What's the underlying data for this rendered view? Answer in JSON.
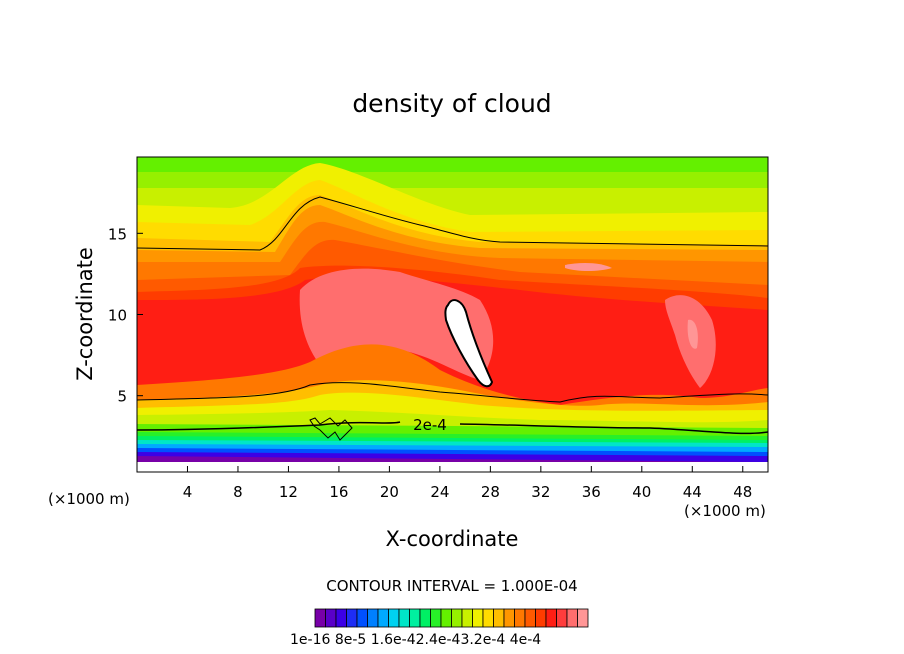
{
  "chart_data": {
    "type": "heatmap",
    "title": "density of cloud",
    "xlabel": "X-coordinate",
    "ylabel": "Z-coordinate",
    "x_unit_left": "(×1000 m)",
    "x_unit_right": "(×1000 m)",
    "xlim": [
      0,
      50
    ],
    "ylim": [
      0.3,
      19.7
    ],
    "x_ticks": [
      4,
      8,
      12,
      16,
      20,
      24,
      28,
      32,
      36,
      40,
      44,
      48
    ],
    "y_ticks": [
      5,
      10,
      15
    ],
    "contour_interval_text": "CONTOUR INTERVAL = 1.000E-04",
    "contour_label": "2e-4",
    "colorbar_tick_labels": [
      "1e-16",
      "8e-5",
      "1.6e-4",
      "2.4e-4",
      "3.2e-4",
      "4e-4"
    ],
    "colorbar_label_text": "1e-16 8e-5 1.6e-42.4e-43.2e-4 4e-4",
    "colorbar_colors": [
      "#7800a8",
      "#5a00c8",
      "#3c00e6",
      "#1e2df5",
      "#0050ff",
      "#0080ff",
      "#00aaff",
      "#00d2f0",
      "#00e6c8",
      "#00f0a0",
      "#00f064",
      "#28f028",
      "#64f000",
      "#96f000",
      "#c8f000",
      "#f0f000",
      "#ffdc00",
      "#ffbe00",
      "#ff9600",
      "#ff7800",
      "#ff5a00",
      "#ff3c00",
      "#ff1e14",
      "#ff3c3c",
      "#ff6e6e",
      "#ff9696"
    ],
    "grid": false,
    "legend": "bottom colorbar"
  }
}
